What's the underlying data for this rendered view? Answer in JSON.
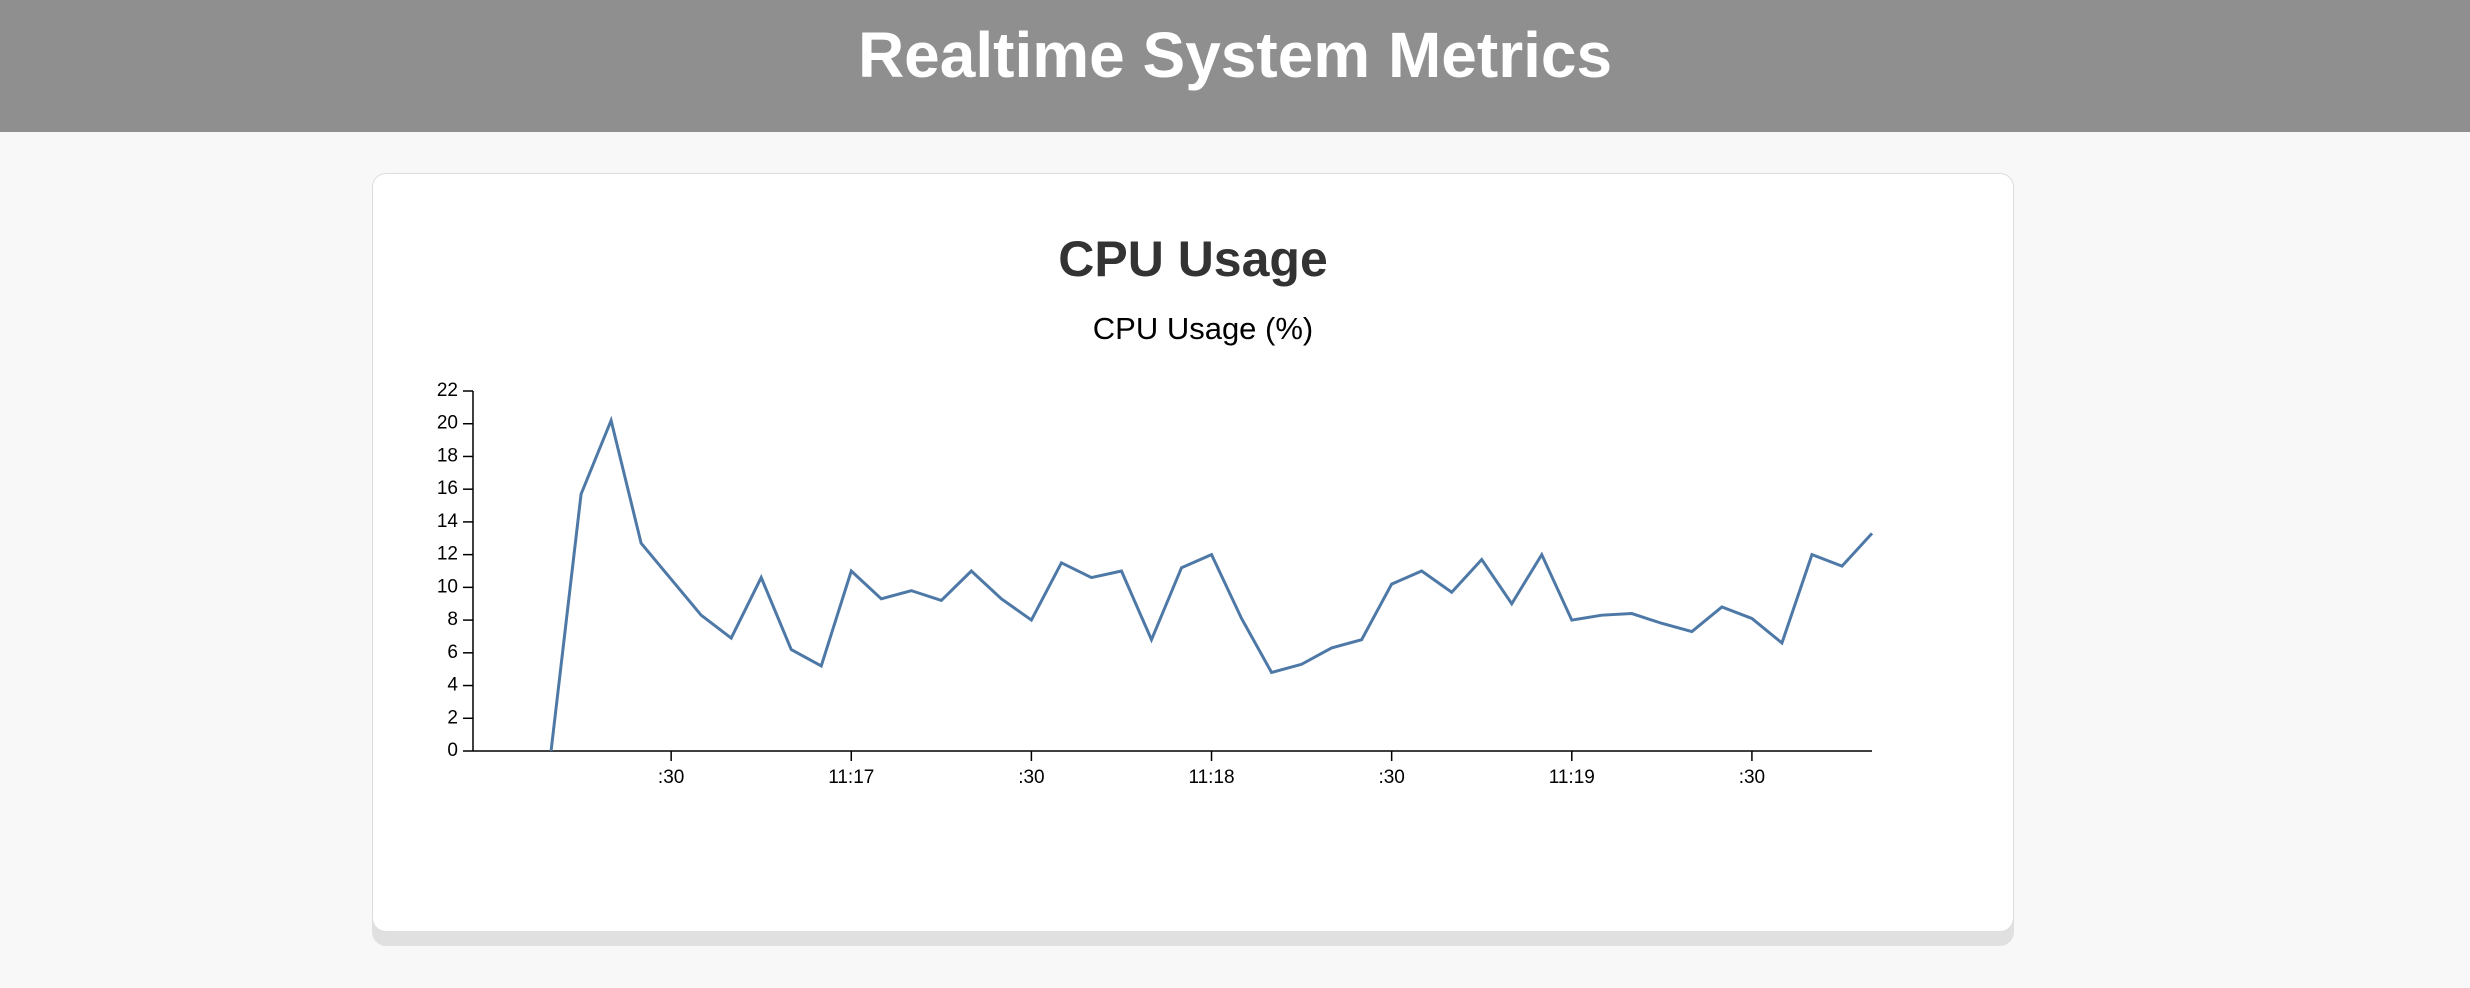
{
  "header": {
    "title": "Realtime System Metrics"
  },
  "chart_data": {
    "type": "line",
    "title": "CPU Usage",
    "subtitle": "CPU Usage (%)",
    "x": [
      "11:16:10",
      "11:16:15",
      "11:16:20",
      "11:16:25",
      "11:16:30",
      "11:16:35",
      "11:16:40",
      "11:16:45",
      "11:16:50",
      "11:16:55",
      "11:17:00",
      "11:17:05",
      "11:17:10",
      "11:17:15",
      "11:17:20",
      "11:17:25",
      "11:17:30",
      "11:17:35",
      "11:17:40",
      "11:17:45",
      "11:17:50",
      "11:17:55",
      "11:18:00",
      "11:18:05",
      "11:18:10",
      "11:18:15",
      "11:18:20",
      "11:18:25",
      "11:18:30",
      "11:18:35",
      "11:18:40",
      "11:18:45",
      "11:18:50",
      "11:18:55",
      "11:19:00",
      "11:19:05",
      "11:19:10",
      "11:19:15",
      "11:19:20",
      "11:19:25",
      "11:19:30",
      "11:19:35",
      "11:19:40",
      "11:19:45",
      "11:19:50"
    ],
    "series": [
      {
        "name": "CPU Usage (%)",
        "color": "#4e79a7",
        "values": [
          0,
          15.7,
          20.2,
          12.7,
          10.5,
          8.3,
          6.9,
          10.6,
          6.2,
          5.2,
          11.0,
          9.3,
          9.8,
          9.2,
          11.0,
          9.3,
          8.0,
          11.5,
          10.6,
          11.0,
          6.8,
          11.2,
          12.0,
          8.1,
          4.8,
          5.3,
          6.3,
          6.8,
          10.2,
          11.0,
          9.7,
          11.7,
          9.0,
          12.0,
          8.0,
          8.3,
          8.4,
          7.8,
          7.3,
          8.8,
          8.1,
          6.6,
          12.0,
          11.3,
          13.3
        ]
      }
    ],
    "xlim": [
      "11:15:57",
      "11:19:50"
    ],
    "xticks": [
      {
        "value": "11:16:30",
        "label": ":30"
      },
      {
        "value": "11:17:00",
        "label": "11:17"
      },
      {
        "value": "11:17:30",
        "label": ":30"
      },
      {
        "value": "11:18:00",
        "label": "11:18"
      },
      {
        "value": "11:18:30",
        "label": ":30"
      },
      {
        "value": "11:19:00",
        "label": "11:19"
      },
      {
        "value": "11:19:30",
        "label": ":30"
      }
    ],
    "ylim": [
      0,
      22
    ],
    "yticks": [
      0,
      2,
      4,
      6,
      8,
      10,
      12,
      14,
      16,
      18,
      20,
      22
    ]
  }
}
